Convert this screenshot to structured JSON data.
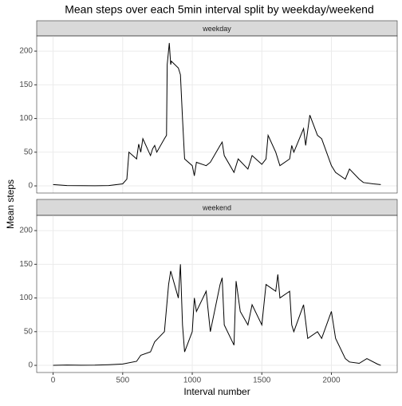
{
  "chart_data": {
    "type": "line",
    "title": "Mean steps over each 5min interval split by weekday/weekend",
    "xlabel": "Interval number",
    "ylabel": "Mean steps",
    "xlim": [
      -118,
      2473
    ],
    "xticks": [
      0,
      500,
      1000,
      1500,
      2000
    ],
    "ylim": [
      -10.6,
      222.6
    ],
    "yticks": [
      0,
      50,
      100,
      150,
      200
    ],
    "grid": true,
    "series": [
      {
        "name": "weekday",
        "color": "#000000",
        "x": [
          0,
          100,
          200,
          300,
          400,
          500,
          530,
          545,
          600,
          615,
          630,
          645,
          700,
          715,
          730,
          745,
          800,
          815,
          820,
          835,
          845,
          850,
          900,
          915,
          930,
          945,
          1000,
          1015,
          1030,
          1100,
          1130,
          1200,
          1215,
          1230,
          1300,
          1330,
          1400,
          1430,
          1500,
          1530,
          1545,
          1600,
          1630,
          1700,
          1715,
          1730,
          1800,
          1815,
          1845,
          1900,
          1930,
          2000,
          2030,
          2100,
          2130,
          2200,
          2230,
          2300,
          2355
        ],
        "values": [
          2,
          0.5,
          0.3,
          0.2,
          0.5,
          3,
          10,
          50,
          40,
          62,
          50,
          70,
          45,
          55,
          60,
          50,
          70,
          75,
          180,
          212,
          180,
          185,
          175,
          165,
          100,
          40,
          30,
          15,
          35,
          30,
          35,
          60,
          65,
          45,
          20,
          40,
          25,
          45,
          32,
          40,
          75,
          50,
          30,
          40,
          60,
          50,
          85,
          60,
          105,
          75,
          70,
          30,
          20,
          10,
          25,
          10,
          5,
          3,
          2
        ]
      },
      {
        "name": "weekend",
        "color": "#000000",
        "x": [
          0,
          100,
          200,
          300,
          400,
          500,
          600,
          630,
          700,
          730,
          800,
          830,
          845,
          900,
          915,
          930,
          945,
          1000,
          1015,
          1030,
          1100,
          1130,
          1200,
          1215,
          1230,
          1300,
          1315,
          1345,
          1400,
          1430,
          1500,
          1530,
          1600,
          1615,
          1630,
          1700,
          1715,
          1730,
          1800,
          1830,
          1900,
          1930,
          2000,
          2030,
          2100,
          2130,
          2200,
          2255,
          2330,
          2355
        ],
        "values": [
          0,
          0.5,
          0.2,
          0.3,
          1,
          2,
          6,
          15,
          20,
          35,
          50,
          120,
          140,
          100,
          150,
          60,
          20,
          50,
          100,
          80,
          110,
          50,
          120,
          130,
          60,
          30,
          125,
          80,
          60,
          90,
          60,
          120,
          110,
          135,
          100,
          110,
          60,
          50,
          90,
          40,
          50,
          40,
          80,
          40,
          10,
          5,
          3,
          10,
          2,
          0
        ]
      }
    ]
  }
}
